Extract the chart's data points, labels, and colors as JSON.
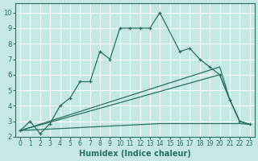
{
  "xlabel": "Humidex (Indice chaleur)",
  "background_color": "#c5e8e4",
  "grid_color": "#ffffff",
  "line_color": "#2a7060",
  "xlim": [
    -0.5,
    23.5
  ],
  "ylim": [
    2.0,
    10.6
  ],
  "xticks": [
    0,
    1,
    2,
    3,
    4,
    5,
    6,
    7,
    8,
    9,
    10,
    11,
    12,
    13,
    14,
    15,
    16,
    17,
    18,
    19,
    20,
    21,
    22,
    23
  ],
  "yticks": [
    2,
    3,
    4,
    5,
    6,
    7,
    8,
    9,
    10
  ],
  "series_main_x": [
    0,
    1,
    2,
    3,
    4,
    5,
    6,
    7,
    8,
    9,
    10,
    11,
    12,
    13,
    14,
    16,
    17,
    18,
    19,
    20,
    21,
    22,
    23
  ],
  "series_main_y": [
    2.4,
    3.0,
    2.2,
    2.85,
    4.0,
    4.5,
    5.55,
    5.55,
    7.5,
    7.0,
    9.0,
    9.0,
    9.0,
    9.0,
    10.0,
    7.5,
    7.7,
    7.0,
    6.5,
    6.0,
    4.4,
    3.0,
    2.8
  ],
  "series_diag1_x": [
    0,
    20,
    21,
    22,
    23
  ],
  "series_diag1_y": [
    2.4,
    6.5,
    4.4,
    3.0,
    2.8
  ],
  "series_flat_x": [
    0,
    14,
    15,
    16,
    17,
    18,
    19,
    20,
    21,
    22,
    23
  ],
  "series_flat_y": [
    2.4,
    2.85,
    2.85,
    2.85,
    2.85,
    2.85,
    2.85,
    2.85,
    2.85,
    2.85,
    2.8
  ],
  "series_diag2_x": [
    0,
    20,
    21,
    22,
    23
  ],
  "series_diag2_y": [
    2.4,
    6.0,
    4.4,
    3.0,
    2.8
  ]
}
